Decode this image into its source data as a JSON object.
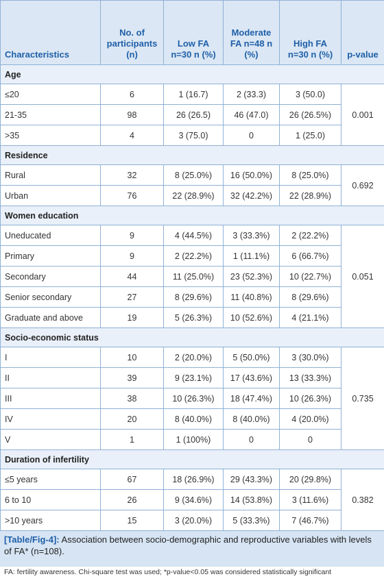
{
  "table": {
    "header": [
      "Characteristics",
      "No. of participants (n)",
      "Low FA n=30 n (%)",
      "Moderate FA n=48 n (%)",
      "High FA n=30 n (%)",
      "p-value"
    ],
    "sections": [
      {
        "title": "Age",
        "p_value": "0.001",
        "rows": [
          [
            "≤20",
            "6",
            "1 (16.7)",
            "2 (33.3)",
            "3 (50.0)"
          ],
          [
            "21-35",
            "98",
            "26 (26.5)",
            "46 (47.0)",
            "26 (26.5%)"
          ],
          [
            ">35",
            "4",
            "3 (75.0)",
            "0",
            "1 (25.0)"
          ]
        ]
      },
      {
        "title": "Residence",
        "p_value": "0.692",
        "rows": [
          [
            "Rural",
            "32",
            "8 (25.0%)",
            "16 (50.0%)",
            "8 (25.0%)"
          ],
          [
            "Urban",
            "76",
            "22 (28.9%)",
            "32 (42.2%)",
            "22 (28.9%)"
          ]
        ]
      },
      {
        "title": "Women education",
        "p_value": "0.051",
        "rows": [
          [
            "Uneducated",
            "9",
            "4 (44.5%)",
            "3 (33.3%)",
            "2 (22.2%)"
          ],
          [
            "Primary",
            "9",
            "2 (22.2%)",
            "1 (11.1%)",
            "6 (66.7%)"
          ],
          [
            "Secondary",
            "44",
            "11 (25.0%)",
            "23 (52.3%)",
            "10 (22.7%)"
          ],
          [
            "Senior secondary",
            "27",
            "8 (29.6%)",
            "11 (40.8%)",
            "8 (29.6%)"
          ],
          [
            "Graduate and above",
            "19",
            "5 (26.3%)",
            "10 (52.6%)",
            "4 (21.1%)"
          ]
        ]
      },
      {
        "title": "Socio-economic status",
        "p_value": "0.735",
        "rows": [
          [
            "I",
            "10",
            "2 (20.0%)",
            "5 (50.0%)",
            "3 (30.0%)"
          ],
          [
            "II",
            "39",
            "9 (23.1%)",
            "17 (43.6%)",
            "13 (33.3%)"
          ],
          [
            "III",
            "38",
            "10 (26.3%)",
            "18 (47.4%)",
            "10 (26.3%)"
          ],
          [
            "IV",
            "20",
            "8 (40.0%)",
            "8 (40.0%)",
            "4 (20.0%)"
          ],
          [
            "V",
            "1",
            "1 (100%)",
            "0",
            "0"
          ]
        ]
      },
      {
        "title": "Duration of infertility",
        "p_value": "0.382",
        "rows": [
          [
            "≤5 years",
            "67",
            "18 (26.9%)",
            "29 (43.3%)",
            "20 (29.8%)"
          ],
          [
            "6 to 10",
            "26",
            "9 (34.6%)",
            "14 (53.8%)",
            "3 (11.6%)"
          ],
          [
            ">10 years",
            "15",
            "3 (20.0%)",
            "5 (33.3%)",
            "7 (46.7%)"
          ]
        ]
      }
    ]
  },
  "caption": {
    "label": "[Table/Fig-4]:",
    "text": "Association between socio-demographic and reproductive variables with levels of FA* (n=108).",
    "footnote": "FA: fertility awareness. Chi-square test was used; *p-value<0.05 was considered statistically significant"
  }
}
